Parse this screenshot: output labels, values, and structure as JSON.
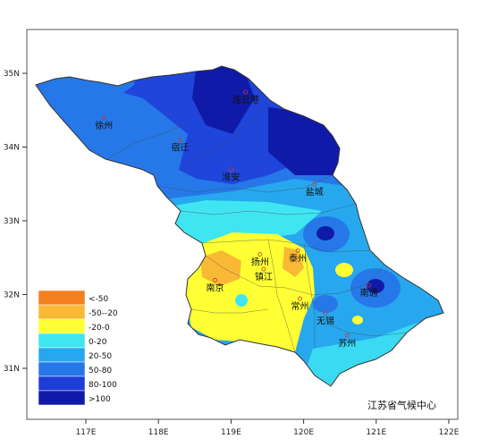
{
  "map": {
    "credit": "江苏省气候中心",
    "lon_ticks": [
      "117E",
      "118E",
      "119E",
      "120E",
      "121E",
      "122E"
    ],
    "lat_ticks": [
      "35N",
      "34N",
      "33N",
      "32N",
      "31N"
    ],
    "cities": [
      {
        "name": "徐州",
        "lon": 117.25,
        "lat": 34.25
      },
      {
        "name": "连云港",
        "lon": 119.2,
        "lat": 34.6
      },
      {
        "name": "宿迁",
        "lon": 118.3,
        "lat": 33.95
      },
      {
        "name": "淮安",
        "lon": 119.0,
        "lat": 33.55
      },
      {
        "name": "盐城",
        "lon": 120.15,
        "lat": 33.35
      },
      {
        "name": "扬州",
        "lon": 119.4,
        "lat": 32.4
      },
      {
        "name": "泰州",
        "lon": 119.92,
        "lat": 32.45
      },
      {
        "name": "镇江",
        "lon": 119.45,
        "lat": 32.2
      },
      {
        "name": "南京",
        "lon": 118.78,
        "lat": 32.05
      },
      {
        "name": "常州",
        "lon": 119.95,
        "lat": 31.8
      },
      {
        "name": "南通",
        "lon": 120.9,
        "lat": 31.98
      },
      {
        "name": "无锡",
        "lon": 120.3,
        "lat": 31.6
      },
      {
        "name": "苏州",
        "lon": 120.6,
        "lat": 31.3
      }
    ],
    "legend": [
      {
        "label": "<-50",
        "color": "#f4801f"
      },
      {
        "label": "-50--20",
        "color": "#f9b935"
      },
      {
        "label": "-20-0",
        "color": "#ffff33"
      },
      {
        "label": "0-20",
        "color": "#3fe6f2"
      },
      {
        "label": "20-50",
        "color": "#27a8ee"
      },
      {
        "label": "50-80",
        "color": "#2678e8"
      },
      {
        "label": "80-100",
        "color": "#1e3cd8"
      },
      {
        "label": ">100",
        "color": "#101aa8"
      }
    ]
  }
}
